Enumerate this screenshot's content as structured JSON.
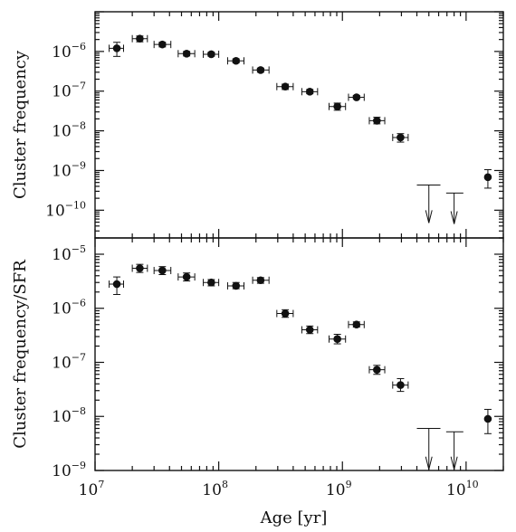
{
  "chart_data": [
    {
      "type": "scatter",
      "xlabel": "Age [yr]",
      "ylabel": "Cluster frequency",
      "x_scale": "log",
      "y_scale": "log",
      "xlim": [
        10000000.0,
        20000000000.0
      ],
      "ylim": [
        2e-11,
        1e-05
      ],
      "x_ticks": [
        {
          "v": 10000000.0,
          "base": "10",
          "exp": "7"
        },
        {
          "v": 100000000.0,
          "base": "10",
          "exp": "8"
        },
        {
          "v": 1000000000.0,
          "base": "10",
          "exp": "9"
        },
        {
          "v": 10000000000.0,
          "base": "10",
          "exp": "10"
        }
      ],
      "y_ticks": [
        {
          "v": 1e-10,
          "base": "10",
          "exp": "−10"
        },
        {
          "v": 1e-09,
          "base": "10",
          "exp": "−9"
        },
        {
          "v": 1e-08,
          "base": "10",
          "exp": "−8"
        },
        {
          "v": 1e-07,
          "base": "10",
          "exp": "−7"
        },
        {
          "v": 1e-06,
          "base": "10",
          "exp": "−6"
        }
      ],
      "points": [
        {
          "x": 15000000.0,
          "y": 1.2e-06,
          "x_err": [
            13000000.0,
            17000000.0
          ],
          "y_err": [
            7.5e-07,
            1.7e-06
          ]
        },
        {
          "x": 23000000.0,
          "y": 2.1e-06,
          "x_err": [
            20000000.0,
            26500000.0
          ],
          "y_err": [
            1.75e-06,
            2.45e-06
          ]
        },
        {
          "x": 35000000.0,
          "y": 1.5e-06,
          "x_err": [
            30000000.0,
            41000000.0
          ],
          "y_err": [
            1.3e-06,
            1.7e-06
          ]
        },
        {
          "x": 55000000.0,
          "y": 8.8e-07,
          "x_err": [
            47000000.0,
            64000000.0
          ],
          "y_err": [
            7.7e-07,
            1e-06
          ]
        },
        {
          "x": 87000000.0,
          "y": 8.5e-07,
          "x_err": [
            75000000.0,
            100000000.0
          ],
          "y_err": [
            7.6e-07,
            9.5e-07
          ]
        },
        {
          "x": 138000000.0,
          "y": 5.8e-07,
          "x_err": [
            118000000.0,
            160000000.0
          ],
          "y_err": [
            5.2e-07,
            6.5e-07
          ]
        },
        {
          "x": 218000000.0,
          "y": 3.4e-07,
          "x_err": [
            188000000.0,
            255000000.0
          ],
          "y_err": [
            3e-07,
            3.8e-07
          ]
        },
        {
          "x": 345000000.0,
          "y": 1.3e-07,
          "x_err": [
            295000000.0,
            400000000.0
          ],
          "y_err": [
            1.1e-07,
            1.5e-07
          ]
        },
        {
          "x": 545000000.0,
          "y": 9.7e-08,
          "x_err": [
            470000000.0,
            630000000.0
          ],
          "y_err": [
            8.6e-08,
            1.1e-07
          ]
        },
        {
          "x": 910000000.0,
          "y": 4.1e-08,
          "x_err": [
            780000000.0,
            1060000000.0
          ],
          "y_err": [
            3.3e-08,
            5e-08
          ]
        },
        {
          "x": 1300000000.0,
          "y": 7e-08,
          "x_err": [
            1120000000.0,
            1500000000.0
          ],
          "y_err": [
            6.4e-08,
            7.8e-08
          ]
        },
        {
          "x": 1900000000.0,
          "y": 1.8e-08,
          "x_err": [
            1650000000.0,
            2200000000.0
          ],
          "y_err": [
            1.5e-08,
            2.2e-08
          ]
        },
        {
          "x": 2950000000.0,
          "y": 6.8e-09,
          "x_err": [
            2550000000.0,
            3400000000.0
          ],
          "y_err": [
            5.2e-09,
            8.5e-09
          ]
        },
        {
          "x": 15000000000.0,
          "y": 6.8e-10,
          "x_err": null,
          "y_err": [
            3.6e-10,
            1.05e-09
          ]
        }
      ],
      "upper_limits": [
        {
          "x": 5000000000.0,
          "y": 4.3e-10,
          "x_err": [
            4000000000.0,
            6200000000.0
          ],
          "arrow_to": 4.8e-11
        },
        {
          "x": 8000000000.0,
          "y": 2.7e-10,
          "x_err": [
            6900000000.0,
            9500000000.0
          ],
          "arrow_to": 4.5e-11
        }
      ]
    },
    {
      "type": "scatter",
      "xlabel": "Age [yr]",
      "ylabel": "Cluster frequency/SFR",
      "x_scale": "log",
      "y_scale": "log",
      "xlim": [
        10000000.0,
        20000000000.0
      ],
      "ylim": [
        1e-09,
        2e-05
      ],
      "x_ticks": [
        {
          "v": 10000000.0,
          "base": "10",
          "exp": "7"
        },
        {
          "v": 100000000.0,
          "base": "10",
          "exp": "8"
        },
        {
          "v": 1000000000.0,
          "base": "10",
          "exp": "9"
        },
        {
          "v": 10000000000.0,
          "base": "10",
          "exp": "10"
        }
      ],
      "y_ticks": [
        {
          "v": 1e-09,
          "base": "10",
          "exp": "−9"
        },
        {
          "v": 1e-08,
          "base": "10",
          "exp": "−8"
        },
        {
          "v": 1e-07,
          "base": "10",
          "exp": "−7"
        },
        {
          "v": 1e-06,
          "base": "10",
          "exp": "−6"
        },
        {
          "v": 1e-05,
          "base": "10",
          "exp": "−5"
        }
      ],
      "points": [
        {
          "x": 15000000.0,
          "y": 2.8e-06,
          "x_err": [
            13000000.0,
            17000000.0
          ],
          "y_err": [
            1.8e-06,
            3.8e-06
          ]
        },
        {
          "x": 23000000.0,
          "y": 5.5e-06,
          "x_err": [
            20000000.0,
            26500000.0
          ],
          "y_err": [
            4.6e-06,
            6.5e-06
          ]
        },
        {
          "x": 35000000.0,
          "y": 5e-06,
          "x_err": [
            30000000.0,
            41000000.0
          ],
          "y_err": [
            4.2e-06,
            5.9e-06
          ]
        },
        {
          "x": 55000000.0,
          "y": 3.8e-06,
          "x_err": [
            47000000.0,
            64000000.0
          ],
          "y_err": [
            3.2e-06,
            4.5e-06
          ]
        },
        {
          "x": 87000000.0,
          "y": 3e-06,
          "x_err": [
            75000000.0,
            100000000.0
          ],
          "y_err": [
            2.6e-06,
            3.4e-06
          ]
        },
        {
          "x": 138000000.0,
          "y": 2.6e-06,
          "x_err": [
            118000000.0,
            160000000.0
          ],
          "y_err": [
            2.3e-06,
            3e-06
          ]
        },
        {
          "x": 218000000.0,
          "y": 3.3e-06,
          "x_err": [
            188000000.0,
            255000000.0
          ],
          "y_err": [
            2.9e-06,
            3.7e-06
          ]
        },
        {
          "x": 345000000.0,
          "y": 8e-07,
          "x_err": [
            295000000.0,
            400000000.0
          ],
          "y_err": [
            6.8e-07,
            9.4e-07
          ]
        },
        {
          "x": 545000000.0,
          "y": 4e-07,
          "x_err": [
            470000000.0,
            630000000.0
          ],
          "y_err": [
            3.4e-07,
            4.7e-07
          ]
        },
        {
          "x": 910000000.0,
          "y": 2.7e-07,
          "x_err": [
            780000000.0,
            1060000000.0
          ],
          "y_err": [
            2.2e-07,
            3.3e-07
          ]
        },
        {
          "x": 1300000000.0,
          "y": 5e-07,
          "x_err": [
            1120000000.0,
            1500000000.0
          ],
          "y_err": [
            4.5e-07,
            5.6e-07
          ]
        },
        {
          "x": 1900000000.0,
          "y": 7.3e-08,
          "x_err": [
            1650000000.0,
            2200000000.0
          ],
          "y_err": [
            6e-08,
            8.8e-08
          ]
        },
        {
          "x": 2950000000.0,
          "y": 3.8e-08,
          "x_err": [
            2550000000.0,
            3400000000.0
          ],
          "y_err": [
            2.9e-08,
            5e-08
          ]
        },
        {
          "x": 15000000000.0,
          "y": 9e-09,
          "x_err": null,
          "y_err": [
            4.8e-09,
            1.35e-08
          ]
        }
      ],
      "upper_limits": [
        {
          "x": 5000000000.0,
          "y": 6e-09,
          "x_err": [
            4000000000.0,
            6200000000.0
          ],
          "arrow_to": 1.05e-09
        },
        {
          "x": 8000000000.0,
          "y": 5.2e-09,
          "x_err": [
            6900000000.0,
            9500000000.0
          ],
          "arrow_to": 1.05e-09
        }
      ]
    }
  ]
}
